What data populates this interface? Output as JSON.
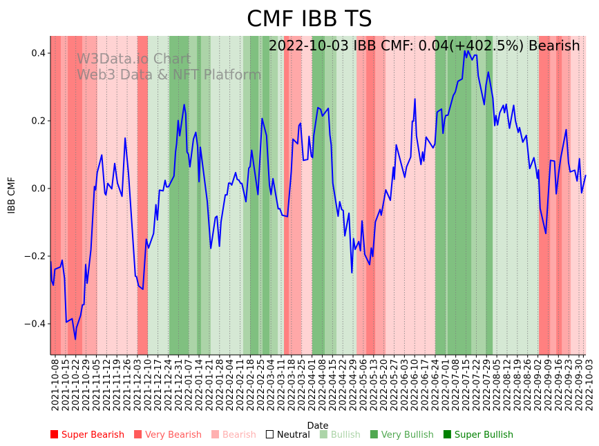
{
  "chart_data": {
    "type": "line",
    "title": "CMF IBB TS",
    "xlabel": "Date",
    "ylabel": "IBB CMF",
    "annotation": "2022-10-03 IBB CMF: 0.04(+402.5%) Bearish",
    "watermark": [
      "W3Data.io Chart",
      "Web3 Data & NFT Platform"
    ],
    "x_origin_date": "2021-10-08",
    "x_unit": "days since 2021-10-08",
    "xlim": [
      -3.3,
      361.7
    ],
    "ylim": [
      -0.49,
      0.45
    ],
    "grid": "x dotted",
    "yticks": [
      {
        "value": -0.4,
        "label": "−0.4"
      },
      {
        "value": -0.2,
        "label": "−0.2"
      },
      {
        "value": 0.0,
        "label": "0.0"
      },
      {
        "value": 0.2,
        "label": "0.2"
      },
      {
        "value": 0.4,
        "label": "0.4"
      }
    ],
    "xtick_labels": [
      "2021-10-08",
      "2021-10-15",
      "2021-10-22",
      "2021-10-29",
      "2021-11-05",
      "2021-11-12",
      "2021-11-19",
      "2021-11-26",
      "2021-12-03",
      "2021-12-10",
      "2021-12-17",
      "2021-12-24",
      "2021-12-31",
      "2022-01-07",
      "2022-01-14",
      "2022-01-21",
      "2022-01-28",
      "2022-02-04",
      "2022-02-11",
      "2022-02-18",
      "2022-02-25",
      "2022-03-04",
      "2022-03-11",
      "2022-03-18",
      "2022-03-25",
      "2022-04-01",
      "2022-04-08",
      "2022-04-15",
      "2022-04-22",
      "2022-04-29",
      "2022-05-06",
      "2022-05-13",
      "2022-05-20",
      "2022-05-27",
      "2022-06-03",
      "2022-06-10",
      "2022-06-17",
      "2022-06-24",
      "2022-07-01",
      "2022-07-08",
      "2022-07-15",
      "2022-07-22",
      "2022-07-29",
      "2022-08-05",
      "2022-08-12",
      "2022-08-19",
      "2022-08-26",
      "2022-09-02",
      "2022-09-09",
      "2022-09-16",
      "2022-09-23",
      "2022-09-30",
      "2022-10-03"
    ],
    "xtick_days_last": 360,
    "series": [
      {
        "name": "IBB CMF",
        "color": "#0000ff",
        "points": [
          [
            -3.1,
            -0.215
          ],
          [
            -2.4,
            -0.273
          ],
          [
            -1.3,
            -0.286
          ],
          [
            -0.3,
            -0.239
          ],
          [
            3.5,
            -0.232
          ],
          [
            4.7,
            -0.212
          ],
          [
            6.3,
            -0.266
          ],
          [
            7.5,
            -0.395
          ],
          [
            11.5,
            -0.385
          ],
          [
            13.7,
            -0.446
          ],
          [
            14.4,
            -0.412
          ],
          [
            17.3,
            -0.375
          ],
          [
            18.5,
            -0.344
          ],
          [
            19.6,
            -0.343
          ],
          [
            20.7,
            -0.225
          ],
          [
            21.7,
            -0.28
          ],
          [
            24.3,
            -0.181
          ],
          [
            26.7,
            0.006
          ],
          [
            27.5,
            -0.004
          ],
          [
            28.6,
            0.047
          ],
          [
            31.7,
            0.099
          ],
          [
            33.8,
            -0.014
          ],
          [
            34.5,
            -0.019
          ],
          [
            35.8,
            0.015
          ],
          [
            38.5,
            -0.001
          ],
          [
            40.5,
            0.074
          ],
          [
            42.4,
            0.016
          ],
          [
            45.5,
            -0.023
          ],
          [
            47.6,
            0.149
          ],
          [
            49.9,
            0.044
          ],
          [
            54.6,
            -0.259
          ],
          [
            55.4,
            -0.261
          ],
          [
            56.8,
            -0.288
          ],
          [
            59.7,
            -0.298
          ],
          [
            62.0,
            -0.15
          ],
          [
            63.6,
            -0.176
          ],
          [
            67.0,
            -0.133
          ],
          [
            68.6,
            -0.048
          ],
          [
            69.6,
            -0.093
          ],
          [
            71.0,
            -0.005
          ],
          [
            73.5,
            -0.007
          ],
          [
            74.9,
            0.024
          ],
          [
            75.8,
            0.005
          ],
          [
            77.2,
            0.005
          ],
          [
            80.9,
            0.037
          ],
          [
            82.0,
            0.108
          ],
          [
            82.7,
            0.132
          ],
          [
            83.8,
            0.201
          ],
          [
            84.8,
            0.156
          ],
          [
            87.9,
            0.248
          ],
          [
            88.9,
            0.22
          ],
          [
            89.8,
            0.108
          ],
          [
            90.8,
            0.101
          ],
          [
            91.8,
            0.064
          ],
          [
            94.2,
            0.146
          ],
          [
            95.8,
            0.166
          ],
          [
            97.0,
            0.125
          ],
          [
            98.0,
            0.02
          ],
          [
            98.9,
            0.122
          ],
          [
            103.6,
            -0.038
          ],
          [
            106.0,
            -0.177
          ],
          [
            109.1,
            -0.086
          ],
          [
            110.2,
            -0.082
          ],
          [
            111.9,
            -0.171
          ],
          [
            113.0,
            -0.099
          ],
          [
            115.9,
            -0.019
          ],
          [
            117.1,
            -0.019
          ],
          [
            118.2,
            0.016
          ],
          [
            119.3,
            0.016
          ],
          [
            120.3,
            0.01
          ],
          [
            122.9,
            0.047
          ],
          [
            124.0,
            0.027
          ],
          [
            125.1,
            0.025
          ],
          [
            126.4,
            0.015
          ],
          [
            127.2,
            0.015
          ],
          [
            130.0,
            -0.039
          ],
          [
            131.9,
            0.06
          ],
          [
            132.8,
            0.065
          ],
          [
            133.9,
            0.113
          ],
          [
            138.2,
            -0.018
          ],
          [
            141.0,
            0.207
          ],
          [
            144.0,
            0.156
          ],
          [
            146.0,
            0.01
          ],
          [
            147.1,
            -0.018
          ],
          [
            148.4,
            0.029
          ],
          [
            152.0,
            -0.06
          ],
          [
            153.1,
            -0.06
          ],
          [
            154.7,
            -0.079
          ],
          [
            158.3,
            -0.083
          ],
          [
            160.9,
            0.05
          ],
          [
            162.0,
            0.146
          ],
          [
            165.2,
            0.132
          ],
          [
            166.1,
            0.186
          ],
          [
            167.2,
            0.193
          ],
          [
            169.1,
            0.083
          ],
          [
            172.1,
            0.086
          ],
          [
            173.0,
            0.154
          ],
          [
            174.6,
            0.095
          ],
          [
            175.4,
            0.091
          ],
          [
            176.2,
            0.156
          ],
          [
            179.0,
            0.239
          ],
          [
            180.9,
            0.234
          ],
          [
            182.1,
            0.214
          ],
          [
            186.1,
            0.237
          ],
          [
            187.2,
            0.159
          ],
          [
            188.1,
            0.129
          ],
          [
            189.2,
            0.016
          ],
          [
            192.8,
            -0.082
          ],
          [
            193.9,
            -0.039
          ],
          [
            195.2,
            -0.062
          ],
          [
            196.3,
            -0.065
          ],
          [
            197.4,
            -0.14
          ],
          [
            200.2,
            -0.073
          ],
          [
            202.2,
            -0.249
          ],
          [
            203.3,
            -0.148
          ],
          [
            204.4,
            -0.18
          ],
          [
            206.9,
            -0.157
          ],
          [
            208.0,
            -0.184
          ],
          [
            209.1,
            -0.096
          ],
          [
            211.0,
            -0.195
          ],
          [
            214.3,
            -0.225
          ],
          [
            215.4,
            -0.176
          ],
          [
            216.4,
            -0.201
          ],
          [
            218.2,
            -0.099
          ],
          [
            221.4,
            -0.062
          ],
          [
            222.2,
            -0.079
          ],
          [
            225.3,
            -0.004
          ],
          [
            228.4,
            -0.035
          ],
          [
            230.5,
            0.063
          ],
          [
            231.1,
            0.027
          ],
          [
            232.4,
            0.129
          ],
          [
            238.2,
            0.033
          ],
          [
            239.5,
            0.064
          ],
          [
            242.3,
            0.093
          ],
          [
            243.4,
            0.199
          ],
          [
            244.2,
            0.199
          ],
          [
            245.2,
            0.265
          ],
          [
            246.2,
            0.156
          ],
          [
            249.3,
            0.071
          ],
          [
            250.4,
            0.108
          ],
          [
            251.2,
            0.081
          ],
          [
            252.8,
            0.152
          ],
          [
            257.5,
            0.12
          ],
          [
            258.8,
            0.132
          ],
          [
            260.3,
            0.226
          ],
          [
            263.3,
            0.235
          ],
          [
            264.3,
            0.163
          ],
          [
            265.4,
            0.203
          ],
          [
            266.2,
            0.216
          ],
          [
            267.7,
            0.217
          ],
          [
            271.3,
            0.275
          ],
          [
            272.7,
            0.285
          ],
          [
            274.5,
            0.317
          ],
          [
            277.4,
            0.324
          ],
          [
            279.1,
            0.407
          ],
          [
            280.3,
            0.387
          ],
          [
            281.4,
            0.407
          ],
          [
            284.2,
            0.38
          ],
          [
            285.8,
            0.394
          ],
          [
            287.3,
            0.394
          ],
          [
            288.3,
            0.333
          ],
          [
            292.4,
            0.248
          ],
          [
            293.6,
            0.305
          ],
          [
            295.2,
            0.344
          ],
          [
            298.3,
            0.267
          ],
          [
            299.6,
            0.186
          ],
          [
            300.4,
            0.216
          ],
          [
            301.5,
            0.188
          ],
          [
            303.0,
            0.224
          ],
          [
            305.4,
            0.246
          ],
          [
            306.2,
            0.224
          ],
          [
            307.4,
            0.249
          ],
          [
            309.6,
            0.178
          ],
          [
            312.5,
            0.246
          ],
          [
            313.7,
            0.2
          ],
          [
            315.6,
            0.166
          ],
          [
            316.5,
            0.18
          ],
          [
            318.7,
            0.137
          ],
          [
            321.1,
            0.157
          ],
          [
            323.4,
            0.059
          ],
          [
            326.3,
            0.091
          ],
          [
            327.8,
            0.057
          ],
          [
            328.6,
            0.03
          ],
          [
            329.4,
            0.055
          ],
          [
            330.5,
            -0.059
          ],
          [
            334.4,
            -0.133
          ],
          [
            337.6,
            0.083
          ],
          [
            340.3,
            0.081
          ],
          [
            341.5,
            -0.016
          ],
          [
            343.1,
            0.044
          ],
          [
            344.6,
            0.091
          ],
          [
            348.3,
            0.174
          ],
          [
            349.9,
            0.076
          ],
          [
            351.0,
            0.049
          ],
          [
            354.1,
            0.054
          ],
          [
            355.7,
            0.022
          ],
          [
            357.3,
            0.088
          ],
          [
            358.8,
            -0.013
          ],
          [
            361.6,
            0.04
          ]
        ]
      }
    ],
    "band_colors": {
      "super_bearish": "#ff8080",
      "very_bearish": "#ffa8a8",
      "bearish": "#ffd3d3",
      "bullish": "#d5e8d4",
      "very_bullish": "#acd4a8",
      "super_bullish": "#80c080"
    },
    "bands": [
      [
        -3.3,
        3.8,
        "super_bearish"
      ],
      [
        3.8,
        8.5,
        "very_bearish"
      ],
      [
        8.5,
        18.4,
        "super_bearish"
      ],
      [
        18.4,
        28.7,
        "very_bearish"
      ],
      [
        28.7,
        56.1,
        "bearish"
      ],
      [
        56.1,
        63.1,
        "super_bearish"
      ],
      [
        63.1,
        77.7,
        "bullish"
      ],
      [
        77.7,
        90.9,
        "super_bullish"
      ],
      [
        90.9,
        96.6,
        "very_bullish"
      ],
      [
        96.6,
        99.4,
        "super_bullish"
      ],
      [
        99.4,
        106,
        "very_bullish"
      ],
      [
        106,
        128.1,
        "bullish"
      ],
      [
        128.1,
        132.8,
        "very_bullish"
      ],
      [
        132.8,
        138.5,
        "super_bullish"
      ],
      [
        138.5,
        141.3,
        "very_bullish"
      ],
      [
        141.3,
        146,
        "super_bullish"
      ],
      [
        146,
        151.7,
        "very_bullish"
      ],
      [
        151.7,
        155.9,
        "bullish"
      ],
      [
        155.9,
        159.2,
        "super_bearish"
      ],
      [
        159.2,
        167.7,
        "very_bearish"
      ],
      [
        167.7,
        175.2,
        "bearish"
      ],
      [
        175.2,
        183.7,
        "super_bullish"
      ],
      [
        183.7,
        191.7,
        "very_bullish"
      ],
      [
        191.7,
        205.4,
        "bullish"
      ],
      [
        205.4,
        212,
        "very_bearish"
      ],
      [
        212,
        218.1,
        "super_bearish"
      ],
      [
        218.1,
        225.2,
        "very_bearish"
      ],
      [
        225.2,
        259.1,
        "bearish"
      ],
      [
        259.1,
        266.1,
        "super_bullish"
      ],
      [
        266.1,
        267.5,
        "very_bullish"
      ],
      [
        267.5,
        283.6,
        "super_bullish"
      ],
      [
        283.6,
        293.5,
        "very_bullish"
      ],
      [
        293.5,
        298.2,
        "super_bullish"
      ],
      [
        298.2,
        329.7,
        "bullish"
      ],
      [
        329.7,
        337.3,
        "super_bearish"
      ],
      [
        337.3,
        341.5,
        "very_bearish"
      ],
      [
        341.5,
        345.3,
        "super_bearish"
      ],
      [
        345.3,
        351.4,
        "very_bearish"
      ],
      [
        351.4,
        361.7,
        "bearish"
      ]
    ],
    "legend": {
      "placement": "bottom",
      "items": [
        {
          "label": "Super Bearish",
          "color": "#ff0000"
        },
        {
          "label": "Very Bearish",
          "color": "#ff5a5a"
        },
        {
          "label": "Bearish",
          "color": "#ffb0b0"
        },
        {
          "label": "Neutral",
          "color": "#000000",
          "hollow": true
        },
        {
          "label": "Bullish",
          "color": "#acd4a8"
        },
        {
          "label": "Very Bullish",
          "color": "#50a850"
        },
        {
          "label": "Super Bullish",
          "color": "#008000"
        }
      ]
    }
  }
}
